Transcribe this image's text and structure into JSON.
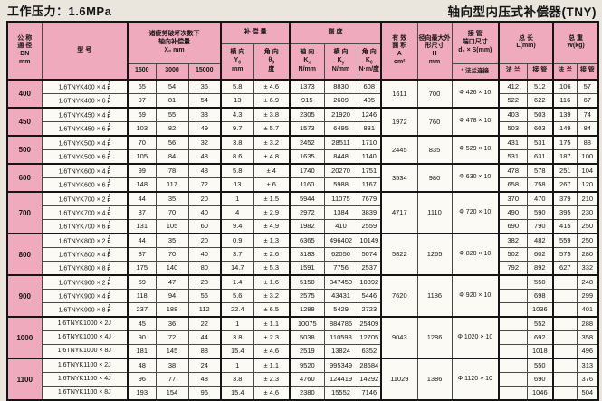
{
  "page": {
    "title_left": "工作压力：1.6MPa",
    "title_right": "轴向型内压式补偿器(TNY)"
  },
  "colors": {
    "header_pink": "#f0aabe",
    "cell_white": "#fbfaf4",
    "page_bg": "#eae6de",
    "line_dark": "#151515"
  },
  "table": {
    "jf_labels": {
      "top": "J",
      "bottom": "F"
    },
    "headers": {
      "dn": [
        "公 称",
        "通 径",
        "DN",
        "mm"
      ],
      "model": "型  号",
      "x_group": [
        "诸疲劳破坏次数下",
        "轴向补偿量",
        "X₀   mm"
      ],
      "x_subs": [
        "1500",
        "3000",
        "15000"
      ],
      "comp_group": "补 偿 量",
      "comp_cols": [
        {
          "dir": "横 向",
          "sym": "Y",
          "sub": "0",
          "unit": "mm"
        },
        {
          "dir": "角 向",
          "sym": "θ",
          "sub": "0",
          "unit": "度"
        }
      ],
      "stiff_group": "刚 度",
      "stiff_cols": [
        {
          "dir": "轴 向",
          "sym": "K",
          "sub": "x",
          "unit": "N/mm"
        },
        {
          "dir": "横 向",
          "sym": "K",
          "sub": "y",
          "unit": "N/mm"
        },
        {
          "dir": "角 向",
          "sym": "K",
          "sub": "θ",
          "unit": "N·m/度"
        }
      ],
      "area": [
        "有 效",
        "面 积",
        "A",
        "cm²"
      ],
      "radial": [
        "径向最大外",
        "形尺寸",
        "H",
        "mm"
      ],
      "pipe_group": [
        "接 管",
        "端口尺寸",
        "d₀ × S(mm)"
      ],
      "pipe_sub": "* 法兰连接",
      "length_group": [
        "总  长",
        "L(mm)"
      ],
      "weight_group": [
        "总  重",
        "W(kg)"
      ],
      "lw_subs": [
        "法 兰",
        "接 管",
        "法 兰",
        "接 管"
      ]
    },
    "groups": [
      {
        "dn": "400",
        "area": "1611",
        "h": "700",
        "pipe": "Φ 426 × 10",
        "rows": [
          {
            "model": "1.6TNYK400 × 4",
            "jf": true,
            "v": [
              "65",
              "54",
              "36",
              "5.8",
              "± 4.6",
              "1373",
              "8830",
              "608",
              "412",
              "512",
              "106",
              "57"
            ]
          },
          {
            "model": "1.6TNYK400 × 6",
            "jf": true,
            "v": [
              "97",
              "81",
              "54",
              "13",
              "± 6.9",
              "915",
              "2609",
              "405",
              "522",
              "622",
              "116",
              "67"
            ]
          }
        ]
      },
      {
        "dn": "450",
        "area": "1972",
        "h": "760",
        "pipe": "Φ 478 × 10",
        "rows": [
          {
            "model": "1.6TNYK450 × 4",
            "jf": true,
            "v": [
              "69",
              "55",
              "33",
              "4.3",
              "± 3.8",
              "2305",
              "21920",
              "1246",
              "403",
              "503",
              "139",
              "74"
            ]
          },
          {
            "model": "1.6TNYK450 × 6",
            "jf": true,
            "v": [
              "103",
              "82",
              "49",
              "9.7",
              "± 5.7",
              "1573",
              "6495",
              "831",
              "503",
              "603",
              "149",
              "84"
            ]
          }
        ]
      },
      {
        "dn": "500",
        "area": "2445",
        "h": "835",
        "pipe": "Φ 529 × 10",
        "rows": [
          {
            "model": "1.6TNYK500 × 4",
            "jf": true,
            "v": [
              "70",
              "56",
              "32",
              "3.8",
              "± 3.2",
              "2452",
              "28511",
              "1710",
              "431",
              "531",
              "175",
              "88"
            ]
          },
          {
            "model": "1.6TNYK500 × 6",
            "jf": true,
            "v": [
              "105",
              "84",
              "48",
              "8.6",
              "± 4.8",
              "1635",
              "8448",
              "1140",
              "531",
              "631",
              "187",
              "100"
            ]
          }
        ]
      },
      {
        "dn": "600",
        "area": "3534",
        "h": "980",
        "pipe": "Φ 630 × 10",
        "rows": [
          {
            "model": "1.6TNYK600 × 4",
            "jf": true,
            "v": [
              "99",
              "78",
              "48",
              "5.8",
              "± 4",
              "1740",
              "20270",
              "1751",
              "478",
              "578",
              "251",
              "104"
            ]
          },
          {
            "model": "1.6TNYK600 × 6",
            "jf": true,
            "v": [
              "148",
              "117",
              "72",
              "13",
              "± 6",
              "1160",
              "5988",
              "1167",
              "658",
              "758",
              "267",
              "120"
            ]
          }
        ]
      },
      {
        "dn": "700",
        "area": "4717",
        "h": "1110",
        "pipe": "Φ 720 × 10",
        "rows": [
          {
            "model": "1.6TNYK700 × 2",
            "jf": true,
            "v": [
              "44",
              "35",
              "20",
              "1",
              "± 1.5",
              "5944",
              "11075",
              "7679",
              "370",
              "470",
              "379",
              "210"
            ]
          },
          {
            "model": "1.6TNYK700 × 4",
            "jf": true,
            "v": [
              "87",
              "70",
              "40",
              "4",
              "± 2.9",
              "2972",
              "1384",
              "3839",
              "490",
              "590",
              "395",
              "230"
            ]
          },
          {
            "model": "1.6TNYK700 × 6",
            "jf": true,
            "v": [
              "131",
              "105",
              "60",
              "9.4",
              "± 4.9",
              "1982",
              "410",
              "2559",
              "690",
              "790",
              "415",
              "250"
            ]
          }
        ]
      },
      {
        "dn": "800",
        "area": "5822",
        "h": "1265",
        "pipe": "Φ 820 × 10",
        "rows": [
          {
            "model": "1.6TNYK800 × 2",
            "jf": true,
            "v": [
              "44",
              "35",
              "20",
              "0.9",
              "± 1.3",
              "6365",
              "496402",
              "10149",
              "382",
              "482",
              "559",
              "250"
            ]
          },
          {
            "model": "1.6TNYK800 × 4",
            "jf": true,
            "v": [
              "87",
              "70",
              "40",
              "3.7",
              "± 2.6",
              "3183",
              "62050",
              "5074",
              "502",
              "602",
              "575",
              "280"
            ]
          },
          {
            "model": "1.6TNYK800 × 8",
            "jf": true,
            "v": [
              "175",
              "140",
              "80",
              "14.7",
              "± 5.3",
              "1591",
              "7756",
              "2537",
              "792",
              "892",
              "627",
              "332"
            ]
          }
        ]
      },
      {
        "dn": "900",
        "area": "7620",
        "h": "1186",
        "pipe": "Φ 920 × 10",
        "rows": [
          {
            "model": "1.6TNYK900 × 2",
            "jf": true,
            "v": [
              "59",
              "47",
              "28",
              "1.4",
              "± 1.6",
              "5150",
              "347450",
              "10892",
              "",
              "550",
              "",
              "248"
            ]
          },
          {
            "model": "1.6TNYK900 × 4",
            "jf": true,
            "v": [
              "118",
              "94",
              "56",
              "5.6",
              "± 3.2",
              "2575",
              "43431",
              "5446",
              "",
              "698",
              "",
              "299"
            ]
          },
          {
            "model": "1.6TNYK900 × 8",
            "jf": true,
            "v": [
              "237",
              "188",
              "112",
              "22.4",
              "± 6.5",
              "1288",
              "5429",
              "2723",
              "",
              "1036",
              "",
              "401"
            ]
          }
        ]
      },
      {
        "dn": "1000",
        "area": "9043",
        "h": "1286",
        "pipe": "Φ 1020 × 10",
        "rows": [
          {
            "model": "1.6TNYK1000 × 2J",
            "jf": false,
            "v": [
              "45",
              "36",
              "22",
              "1",
              "± 1.1",
              "10075",
              "884786",
              "25409",
              "",
              "552",
              "",
              "288"
            ]
          },
          {
            "model": "1.6TNYK1000 × 4J",
            "jf": false,
            "v": [
              "90",
              "72",
              "44",
              "3.8",
              "± 2.3",
              "5038",
              "110598",
              "12705",
              "",
              "692",
              "",
              "358"
            ]
          },
          {
            "model": "1.6TNYK1000 × 8J",
            "jf": false,
            "v": [
              "181",
              "145",
              "88",
              "15.4",
              "± 4.6",
              "2519",
              "13824",
              "6352",
              "",
              "1018",
              "",
              "496"
            ]
          }
        ]
      },
      {
        "dn": "1100",
        "area": "11029",
        "h": "1386",
        "pipe": "Φ 1120 × 10",
        "rows": [
          {
            "model": "1.6TNYK1100 × 2J",
            "jf": false,
            "v": [
              "48",
              "38",
              "24",
              "1",
              "± 1.1",
              "9520",
              "995349",
              "28584",
              "",
              "550",
              "",
              "313"
            ]
          },
          {
            "model": "1.6TNYK1100 × 4J",
            "jf": false,
            "v": [
              "96",
              "77",
              "48",
              "3.8",
              "± 2.3",
              "4760",
              "124419",
              "14292",
              "",
              "690",
              "",
              "376"
            ]
          },
          {
            "model": "1.6TNYK1100 × 8J",
            "jf": false,
            "v": [
              "193",
              "154",
              "96",
              "15.4",
              "± 4.6",
              "2380",
              "15552",
              "7146",
              "",
              "1046",
              "",
              "504"
            ]
          }
        ]
      }
    ]
  }
}
